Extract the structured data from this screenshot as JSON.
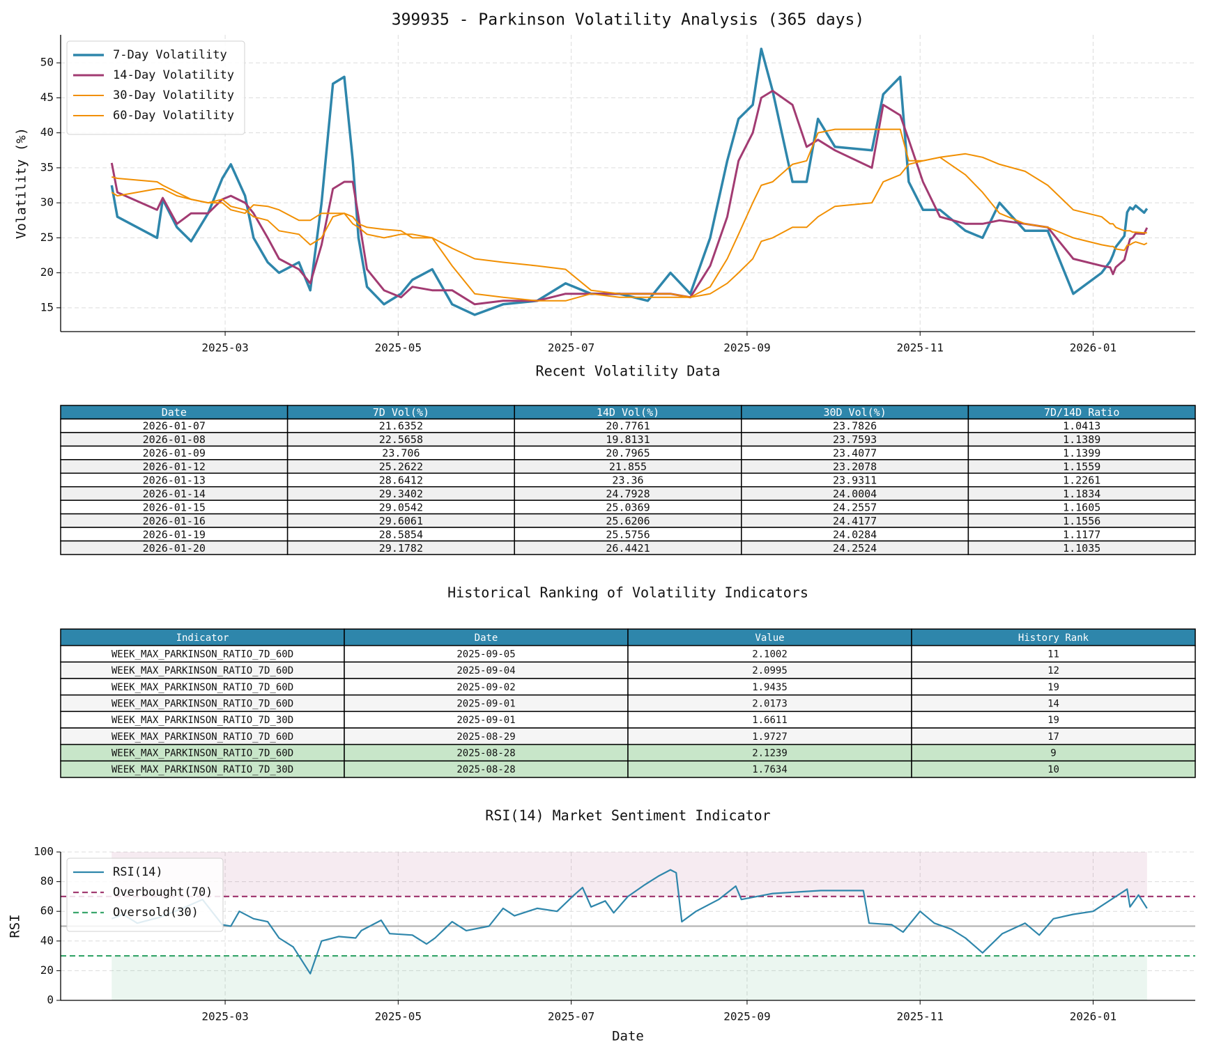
{
  "chart_data": [
    {
      "type": "line",
      "title": "399935 - Parkinson Volatility Analysis (365 days)",
      "ylabel": "Volatility (%)",
      "xlim": [
        "2025-01-02",
        "2026-02-06"
      ],
      "xticks": [
        {
          "value": "2025-03-01",
          "label": "2025-03"
        },
        {
          "value": "2025-05-01",
          "label": "2025-05"
        },
        {
          "value": "2025-07-01",
          "label": "2025-07"
        },
        {
          "value": "2025-09-01",
          "label": "2025-09"
        },
        {
          "value": "2025-11-01",
          "label": "2025-11"
        },
        {
          "value": "2026-01-01",
          "label": "2026-01"
        }
      ],
      "ylim": [
        11.6,
        54
      ],
      "yticks": [
        15,
        20,
        25,
        30,
        35,
        40,
        45,
        50
      ],
      "grid": true,
      "legend": "upper left",
      "x": [
        "2025-01-20",
        "2025-01-22",
        "2025-02-05",
        "2025-02-07",
        "2025-02-12",
        "2025-02-17",
        "2025-02-23",
        "2025-02-28",
        "2025-03-03",
        "2025-03-08",
        "2025-03-11",
        "2025-03-16",
        "2025-03-20",
        "2025-03-27",
        "2025-03-31",
        "2025-04-04",
        "2025-04-08",
        "2025-04-12",
        "2025-04-15",
        "2025-04-17",
        "2025-04-20",
        "2025-04-26",
        "2025-05-02",
        "2025-05-06",
        "2025-05-13",
        "2025-05-20",
        "2025-05-28",
        "2025-06-07",
        "2025-06-19",
        "2025-06-29",
        "2025-07-08",
        "2025-07-18",
        "2025-07-28",
        "2025-08-05",
        "2025-08-12",
        "2025-08-19",
        "2025-08-25",
        "2025-08-29",
        "2025-09-03",
        "2025-09-06",
        "2025-09-10",
        "2025-09-17",
        "2025-09-22",
        "2025-09-26",
        "2025-10-02",
        "2025-10-15",
        "2025-10-19",
        "2025-10-25",
        "2025-10-28",
        "2025-11-02",
        "2025-11-08",
        "2025-11-17",
        "2025-11-23",
        "2025-11-29",
        "2025-12-08",
        "2025-12-16",
        "2025-12-25",
        "2026-01-04",
        "2026-01-07",
        "2026-01-08",
        "2026-01-09",
        "2026-01-12",
        "2026-01-13",
        "2026-01-14",
        "2026-01-15",
        "2026-01-16",
        "2026-01-19",
        "2026-01-20"
      ],
      "series": [
        {
          "name": "7-Day Volatility",
          "color": "#2e86ab",
          "line_width": 3.5,
          "values": [
            32.5,
            28,
            25,
            30.5,
            26.5,
            24.5,
            28.5,
            33.5,
            35.5,
            31,
            25,
            21.5,
            20,
            21.5,
            17.5,
            30,
            47,
            48,
            36,
            25,
            18,
            15.5,
            17,
            19,
            20.5,
            15.5,
            14,
            15.5,
            16,
            18.5,
            17,
            17,
            16,
            20,
            17,
            25,
            36,
            42,
            44,
            52,
            46,
            33,
            33,
            42,
            38,
            37.5,
            45.5,
            48,
            33,
            29,
            29,
            26,
            25,
            30,
            26,
            26,
            17,
            20,
            21.6352,
            22.5658,
            23.706,
            25.2622,
            28.6412,
            29.3402,
            29.0542,
            29.6061,
            28.5854,
            29.1782
          ]
        },
        {
          "name": "14-Day Volatility",
          "color": "#a23b72",
          "line_width": 3,
          "values": [
            35.7,
            31.5,
            29,
            30.7,
            27,
            28.5,
            28.5,
            30.5,
            31,
            30,
            28.5,
            25,
            22,
            20.5,
            18.5,
            24,
            32,
            33,
            33,
            28,
            20.5,
            17.5,
            16.5,
            18,
            17.5,
            17.5,
            15.5,
            16,
            16,
            17,
            17,
            17,
            17,
            17,
            16.5,
            21,
            28,
            36,
            40,
            45,
            46,
            44,
            38,
            39,
            37.5,
            35,
            44,
            42.5,
            39,
            33,
            28,
            27,
            27,
            27.5,
            27,
            26.5,
            22,
            21,
            20.7761,
            19.8131,
            20.7965,
            21.855,
            23.36,
            24.7928,
            25.0369,
            25.6206,
            25.5756,
            26.4421
          ]
        },
        {
          "name": "30-Day Volatility",
          "color": "#f18f01",
          "line_width": 2,
          "values": [
            31.5,
            31,
            32,
            32,
            31,
            30.5,
            30,
            30.5,
            29.5,
            29,
            28,
            27.5,
            26,
            25.5,
            24,
            25,
            28,
            28.5,
            27,
            26.5,
            25.5,
            25,
            25.5,
            25.5,
            25,
            21,
            17,
            16.5,
            16,
            16,
            17,
            16.5,
            16.5,
            16.5,
            16.5,
            18,
            22,
            25.5,
            30,
            32.5,
            33,
            35.5,
            36,
            40,
            40.5,
            40.5,
            40.5,
            40.5,
            36,
            36,
            36.5,
            34,
            31.5,
            28.5,
            27,
            26.5,
            25,
            24,
            23.7826,
            23.7593,
            23.4077,
            23.2078,
            23.9311,
            24.0004,
            24.2557,
            24.4177,
            24.0284,
            24.2524
          ]
        },
        {
          "name": "60-Day Volatility",
          "color": "#f18f01",
          "line_width": 2,
          "values": [
            33.7,
            33.5,
            33,
            32.5,
            31.5,
            30.5,
            30,
            30,
            29,
            28.5,
            29.7,
            29.5,
            29,
            27.5,
            27.5,
            28.5,
            28.5,
            28.5,
            28,
            27,
            26.5,
            26.2,
            26,
            25,
            25,
            23.5,
            22,
            21.5,
            21,
            20.5,
            17.5,
            17,
            17,
            17,
            16.5,
            17,
            18.5,
            20,
            22,
            24.5,
            25,
            26.5,
            26.5,
            28,
            29.5,
            30,
            33,
            34,
            35.5,
            36,
            36.5,
            37,
            36.5,
            35.5,
            34.5,
            32.5,
            29,
            28,
            27,
            27,
            26.5,
            26,
            26,
            26,
            25.8,
            25.8,
            25.7,
            25.7
          ]
        }
      ]
    },
    {
      "type": "line",
      "title": "RSI(14) Market Sentiment Indicator",
      "xlabel": "Date",
      "ylabel": "RSI",
      "xlim": [
        "2025-01-02",
        "2026-02-06"
      ],
      "xticks": [
        {
          "value": "2025-03-01",
          "label": "2025-03"
        },
        {
          "value": "2025-05-01",
          "label": "2025-05"
        },
        {
          "value": "2025-07-01",
          "label": "2025-07"
        },
        {
          "value": "2025-09-01",
          "label": "2025-09"
        },
        {
          "value": "2025-11-01",
          "label": "2025-11"
        },
        {
          "value": "2026-01-01",
          "label": "2026-01"
        }
      ],
      "ylim": [
        0,
        100
      ],
      "yticks": [
        0,
        20,
        40,
        60,
        80,
        100
      ],
      "grid": true,
      "legend": "upper left",
      "bands": [
        {
          "from": 70,
          "to": 100,
          "color": "#a23b72"
        },
        {
          "from": 0,
          "to": 30,
          "color": "#3aa76d"
        }
      ],
      "reference_lines": [
        {
          "name": "Overbought(70)",
          "value": 70,
          "color": "#a23b72",
          "style": "dashed"
        },
        {
          "name": "Oversold(30)",
          "value": 30,
          "color": "#3aa76d",
          "style": "dashed"
        },
        {
          "value": 50,
          "color": "#b5b5b5",
          "style": "solid"
        }
      ],
      "x": [
        "2025-01-20",
        "2025-01-24",
        "2025-01-29",
        "2025-02-06",
        "2025-02-14",
        "2025-02-21",
        "2025-02-28",
        "2025-03-03",
        "2025-03-06",
        "2025-03-11",
        "2025-03-16",
        "2025-03-20",
        "2025-03-25",
        "2025-03-31",
        "2025-04-04",
        "2025-04-10",
        "2025-04-16",
        "2025-04-18",
        "2025-04-25",
        "2025-04-28",
        "2025-05-06",
        "2025-05-11",
        "2025-05-14",
        "2025-05-20",
        "2025-05-25",
        "2025-06-02",
        "2025-06-07",
        "2025-06-11",
        "2025-06-19",
        "2025-06-26",
        "2025-07-02",
        "2025-07-05",
        "2025-07-08",
        "2025-07-13",
        "2025-07-16",
        "2025-07-21",
        "2025-07-27",
        "2025-08-01",
        "2025-08-05",
        "2025-08-07",
        "2025-08-09",
        "2025-08-14",
        "2025-08-22",
        "2025-08-28",
        "2025-08-30",
        "2025-09-10",
        "2025-09-27",
        "2025-10-12",
        "2025-10-14",
        "2025-10-22",
        "2025-10-26",
        "2025-11-01",
        "2025-11-06",
        "2025-11-12",
        "2025-11-17",
        "2025-11-23",
        "2025-11-30",
        "2025-12-08",
        "2025-12-13",
        "2025-12-18",
        "2025-12-25",
        "2026-01-01",
        "2026-01-09",
        "2026-01-13",
        "2026-01-14",
        "2026-01-17",
        "2026-01-20"
      ],
      "series": [
        {
          "name": "RSI(14)",
          "color": "#2e86ab",
          "line_width": 2.2,
          "values": [
            55,
            58,
            52,
            56,
            62,
            68,
            51,
            50,
            60,
            55,
            53,
            42,
            36,
            18,
            40,
            43,
            42,
            47,
            54,
            45,
            44,
            38,
            42,
            53,
            47,
            50,
            62,
            57,
            62,
            60,
            71,
            76,
            63,
            67,
            59,
            70,
            78,
            84,
            88,
            86,
            53,
            60,
            68,
            77,
            68,
            72,
            74,
            74,
            52,
            51,
            46,
            60,
            52,
            48,
            42,
            32,
            45,
            52,
            44,
            55,
            58,
            60,
            70,
            75,
            63,
            71,
            62
          ]
        }
      ]
    }
  ],
  "tables": [
    {
      "title": "Recent Volatility Data",
      "header_color": "#2e86ab",
      "stripe_color": "#f0f0f0",
      "columns": [
        "Date",
        "7D Vol(%)",
        "14D Vol(%)",
        "30D Vol(%)",
        "7D/14D Ratio"
      ],
      "rows": [
        [
          "2026-01-07",
          21.6352,
          20.7761,
          23.7826,
          1.0413
        ],
        [
          "2026-01-08",
          22.5658,
          19.8131,
          23.7593,
          1.1389
        ],
        [
          "2026-01-09",
          23.706,
          20.7965,
          23.4077,
          1.1399
        ],
        [
          "2026-01-12",
          25.2622,
          21.855,
          23.2078,
          1.1559
        ],
        [
          "2026-01-13",
          28.6412,
          23.36,
          23.9311,
          1.2261
        ],
        [
          "2026-01-14",
          29.3402,
          24.7928,
          24.0004,
          1.1834
        ],
        [
          "2026-01-15",
          29.0542,
          25.0369,
          24.2557,
          1.1605
        ],
        [
          "2026-01-16",
          29.6061,
          25.6206,
          24.4177,
          1.1556
        ],
        [
          "2026-01-19",
          28.5854,
          25.5756,
          24.0284,
          1.1177
        ],
        [
          "2026-01-20",
          29.1782,
          26.4421,
          24.2524,
          1.1035
        ]
      ]
    },
    {
      "title": "Historical Ranking of Volatility Indicators",
      "header_color": "#2e86ab",
      "stripe_color": "#f5f5f5",
      "highlight_color": "#c8e6c9",
      "highlighted_rows": [
        6,
        7
      ],
      "columns": [
        "Indicator",
        "Date",
        "Value",
        "History Rank"
      ],
      "rows": [
        [
          "WEEK_MAX_PARKINSON_RATIO_7D_60D",
          "2025-09-05",
          2.1002,
          11
        ],
        [
          "WEEK_MAX_PARKINSON_RATIO_7D_60D",
          "2025-09-04",
          2.0995,
          12
        ],
        [
          "WEEK_MAX_PARKINSON_RATIO_7D_60D",
          "2025-09-02",
          1.9435,
          19
        ],
        [
          "WEEK_MAX_PARKINSON_RATIO_7D_60D",
          "2025-09-01",
          2.0173,
          14
        ],
        [
          "WEEK_MAX_PARKINSON_RATIO_7D_30D",
          "2025-09-01",
          1.6611,
          19
        ],
        [
          "WEEK_MAX_PARKINSON_RATIO_7D_60D",
          "2025-08-29",
          1.9727,
          17
        ],
        [
          "WEEK_MAX_PARKINSON_RATIO_7D_60D",
          "2025-08-28",
          2.1239,
          9
        ],
        [
          "WEEK_MAX_PARKINSON_RATIO_7D_30D",
          "2025-08-28",
          1.7634,
          10
        ]
      ]
    }
  ]
}
